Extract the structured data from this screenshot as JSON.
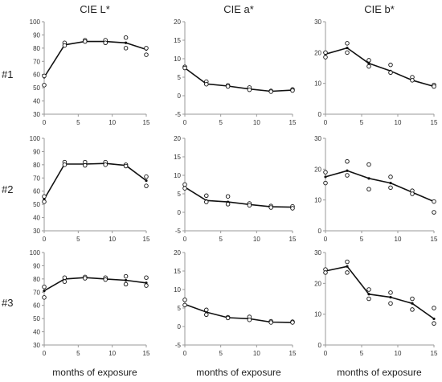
{
  "figure": {
    "column_titles": [
      "CIE L*",
      "CIE a*",
      "CIE b*"
    ],
    "row_labels": [
      "#1",
      "#2",
      "#3"
    ],
    "xlabel": "months of exposure"
  },
  "chart_data": [
    {
      "type": "line",
      "row": "#1",
      "column": "CIE L*",
      "xlim": [
        0,
        15
      ],
      "ylim": [
        30,
        100
      ],
      "xticks": [
        0,
        5,
        10,
        15
      ],
      "yticks": [
        30,
        40,
        50,
        60,
        70,
        80,
        90,
        100
      ],
      "mean": {
        "x": [
          0,
          3,
          6,
          9,
          12,
          15
        ],
        "y": [
          58,
          82.5,
          85,
          85,
          84,
          79
        ]
      },
      "replicates": {
        "x": [
          0,
          0,
          3,
          3,
          6,
          6,
          9,
          9,
          12,
          12,
          15,
          15
        ],
        "y": [
          59,
          52,
          84,
          82,
          86,
          85,
          86,
          84,
          88,
          80,
          80,
          75
        ]
      }
    },
    {
      "type": "line",
      "row": "#1",
      "column": "CIE a*",
      "xlim": [
        0,
        15
      ],
      "ylim": [
        -5,
        20
      ],
      "xticks": [
        0,
        5,
        10,
        15
      ],
      "yticks": [
        -5,
        0,
        5,
        10,
        15,
        20
      ],
      "mean": {
        "x": [
          0,
          3,
          6,
          9,
          12,
          15
        ],
        "y": [
          7.5,
          3.2,
          2.6,
          1.8,
          1.2,
          1.5
        ]
      },
      "replicates": {
        "x": [
          0,
          0,
          3,
          3,
          6,
          6,
          9,
          9,
          12,
          12,
          15,
          15
        ],
        "y": [
          7.8,
          7.5,
          3.8,
          3.1,
          2.8,
          2.5,
          2.2,
          1.6,
          1.3,
          1.1,
          1.7,
          1.4
        ]
      }
    },
    {
      "type": "line",
      "row": "#1",
      "column": "CIE b*",
      "xlim": [
        0,
        15
      ],
      "ylim": [
        0,
        30
      ],
      "xticks": [
        0,
        5,
        10,
        15
      ],
      "yticks": [
        0,
        10,
        20,
        30
      ],
      "mean": {
        "x": [
          0,
          3,
          6,
          9,
          12,
          15
        ],
        "y": [
          19.5,
          21.5,
          16.5,
          14,
          11,
          9
        ]
      },
      "replicates": {
        "x": [
          0,
          0,
          3,
          3,
          6,
          6,
          9,
          9,
          12,
          12,
          15,
          15
        ],
        "y": [
          20,
          18.5,
          23,
          20,
          17.5,
          15.5,
          16,
          13.5,
          12,
          11,
          9.5,
          9
        ]
      }
    },
    {
      "type": "line",
      "row": "#2",
      "column": "CIE L*",
      "xlim": [
        0,
        15
      ],
      "ylim": [
        30,
        100
      ],
      "xticks": [
        0,
        5,
        10,
        15
      ],
      "yticks": [
        30,
        40,
        50,
        60,
        70,
        80,
        90,
        100
      ],
      "mean": {
        "x": [
          0,
          3,
          6,
          9,
          12,
          15
        ],
        "y": [
          54,
          80.5,
          80.5,
          81,
          79.5,
          68
        ]
      },
      "replicates": {
        "x": [
          0,
          0,
          3,
          3,
          6,
          6,
          9,
          9,
          12,
          12,
          15,
          15
        ],
        "y": [
          56,
          52,
          82,
          80,
          82,
          79.5,
          82,
          80,
          80,
          79,
          71,
          64
        ]
      }
    },
    {
      "type": "line",
      "row": "#2",
      "column": "CIE a*",
      "xlim": [
        0,
        15
      ],
      "ylim": [
        -5,
        20
      ],
      "xticks": [
        0,
        5,
        10,
        15
      ],
      "yticks": [
        -5,
        0,
        5,
        10,
        15,
        20
      ],
      "mean": {
        "x": [
          0,
          3,
          6,
          9,
          12,
          15
        ],
        "y": [
          6.8,
          3.2,
          2.8,
          2.1,
          1.5,
          1.4
        ]
      },
      "replicates": {
        "x": [
          0,
          0,
          3,
          3,
          6,
          6,
          9,
          9,
          12,
          12,
          15,
          15
        ],
        "y": [
          7.5,
          6.5,
          4.5,
          2.8,
          4.3,
          2.2,
          2.4,
          1.9,
          1.7,
          1.3,
          1.6,
          1.1
        ]
      }
    },
    {
      "type": "line",
      "row": "#2",
      "column": "CIE b*",
      "xlim": [
        0,
        15
      ],
      "ylim": [
        0,
        30
      ],
      "xticks": [
        0,
        5,
        10,
        15
      ],
      "yticks": [
        0,
        10,
        20,
        30
      ],
      "mean": {
        "x": [
          0,
          3,
          6,
          9,
          12,
          15
        ],
        "y": [
          17.5,
          19.5,
          17,
          15.5,
          12.5,
          9.5
        ]
      },
      "replicates": {
        "x": [
          0,
          0,
          3,
          3,
          6,
          6,
          9,
          9,
          12,
          12,
          15,
          15
        ],
        "y": [
          19,
          15.5,
          22.5,
          18,
          21.5,
          13.5,
          17.5,
          14,
          13,
          12,
          9.5,
          6
        ]
      }
    },
    {
      "type": "line",
      "row": "#3",
      "column": "CIE L*",
      "xlim": [
        0,
        15
      ],
      "ylim": [
        30,
        100
      ],
      "xticks": [
        0,
        5,
        10,
        15
      ],
      "yticks": [
        30,
        40,
        50,
        60,
        70,
        80,
        90,
        100
      ],
      "mean": {
        "x": [
          0,
          3,
          6,
          9,
          12,
          15
        ],
        "y": [
          71,
          80,
          81,
          80,
          79,
          77
        ]
      },
      "replicates": {
        "x": [
          0,
          0,
          3,
          3,
          6,
          6,
          9,
          9,
          12,
          12,
          15,
          15
        ],
        "y": [
          74,
          66,
          81,
          78,
          81.5,
          80.5,
          81,
          79.5,
          82,
          76,
          81,
          75
        ]
      }
    },
    {
      "type": "line",
      "row": "#3",
      "column": "CIE a*",
      "xlim": [
        0,
        15
      ],
      "ylim": [
        -5,
        20
      ],
      "xticks": [
        0,
        5,
        10,
        15
      ],
      "yticks": [
        -5,
        0,
        5,
        10,
        15,
        20
      ],
      "mean": {
        "x": [
          0,
          3,
          6,
          9,
          12,
          15
        ],
        "y": [
          6,
          3.9,
          2.4,
          2.1,
          1.2,
          1.1
        ]
      },
      "replicates": {
        "x": [
          0,
          0,
          3,
          3,
          6,
          6,
          9,
          9,
          12,
          12,
          15,
          15
        ],
        "y": [
          7.2,
          5.8,
          4.5,
          3.2,
          2.5,
          2.3,
          2.6,
          1.8,
          1.4,
          1.1,
          1.3,
          1.1
        ]
      }
    },
    {
      "type": "line",
      "row": "#3",
      "column": "CIE b*",
      "xlim": [
        0,
        15
      ],
      "ylim": [
        0,
        30
      ],
      "xticks": [
        0,
        5,
        10,
        15
      ],
      "yticks": [
        0,
        10,
        20,
        30
      ],
      "mean": {
        "x": [
          0,
          3,
          6,
          9,
          12,
          15
        ],
        "y": [
          24,
          25.5,
          16.5,
          15.5,
          13.5,
          8.5
        ]
      },
      "replicates": {
        "x": [
          0,
          0,
          3,
          3,
          6,
          6,
          9,
          9,
          12,
          12,
          15,
          15
        ],
        "y": [
          24.5,
          23.5,
          27,
          23.5,
          18,
          15,
          17,
          13.5,
          15,
          11.5,
          12,
          7
        ]
      }
    }
  ]
}
